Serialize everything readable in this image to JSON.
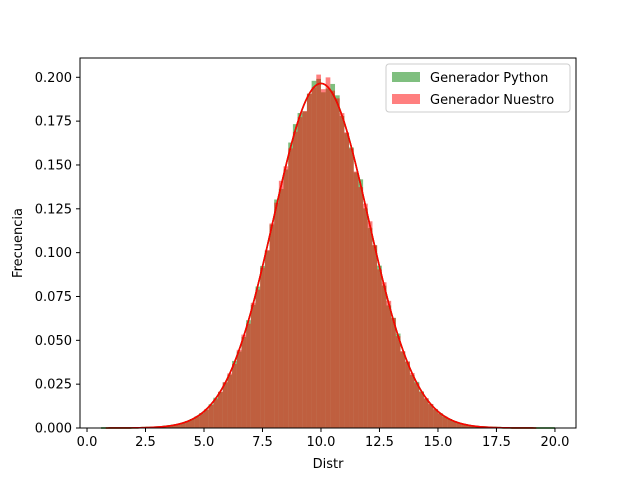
{
  "chart_data": {
    "type": "bar",
    "title": "",
    "xlabel": "Distr",
    "ylabel": "Frecuencia",
    "xlim": [
      -0.3,
      20.9
    ],
    "ylim": [
      0,
      0.211
    ],
    "xticks": [
      0.0,
      2.5,
      5.0,
      7.5,
      10.0,
      12.5,
      15.0,
      17.5,
      20.0
    ],
    "xtick_labels": [
      "0.0",
      "2.5",
      "5.0",
      "7.5",
      "10.0",
      "12.5",
      "15.0",
      "17.5",
      "20.0"
    ],
    "yticks": [
      0.0,
      0.025,
      0.05,
      0.075,
      0.1,
      0.125,
      0.15,
      0.175,
      0.2
    ],
    "ytick_labels": [
      "0.000",
      "0.025",
      "0.050",
      "0.075",
      "0.100",
      "0.125",
      "0.150",
      "0.175",
      "0.200"
    ],
    "grid": false,
    "legend_position": "top-right",
    "series": [
      {
        "name": "Generador Python",
        "color": "#008000",
        "opacity": 0.5,
        "bins": {
          "start": 0.6,
          "end": 20.0,
          "count": 97
        },
        "curve": {
          "mean": 10.0,
          "std": 2.03,
          "x_range": [
            0.6,
            20.0
          ]
        }
      },
      {
        "name": "Generador Nuestro",
        "color": "#ff0000",
        "opacity": 0.5,
        "bins": {
          "start": 0.8,
          "end": 19.2,
          "count": 92
        },
        "curve": {
          "mean": 10.0,
          "std": 2.03,
          "x_range": [
            0.8,
            19.2
          ]
        }
      }
    ]
  }
}
